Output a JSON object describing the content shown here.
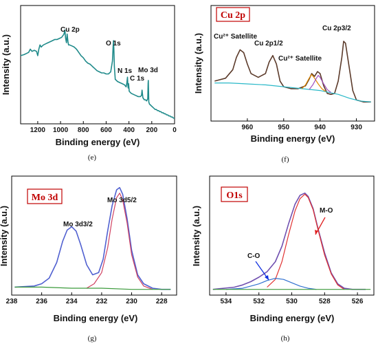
{
  "chart_data": [
    {
      "id": "e",
      "type": "line",
      "caption": "(e)",
      "xlabel": "Binding energy (eV)",
      "ylabel": "Intensity (a.u.)",
      "xlim": [
        1350,
        0
      ],
      "x_ticks": [
        1200,
        1000,
        800,
        600,
        400,
        200,
        0
      ],
      "x_tick_labels": [
        "1200",
        "1000",
        "800",
        "600",
        "400",
        "200",
        "0"
      ],
      "line_color": "#1f8a8a",
      "series": [
        {
          "x": [
            1350,
            1320,
            1300,
            1280,
            1265,
            1250,
            1230,
            1210,
            1200,
            1190,
            1180,
            1170,
            1160,
            1150,
            1130,
            1110,
            1090,
            1070,
            1050,
            1030,
            1010,
            990,
            970,
            962,
            955,
            948,
            942,
            935,
            930,
            920,
            900,
            880,
            860,
            840,
            820,
            800,
            780,
            760,
            740,
            720,
            700,
            680,
            660,
            640,
            620,
            600,
            580,
            560,
            545,
            538,
            535,
            532,
            528,
            520,
            510,
            500,
            480,
            460,
            440,
            425,
            418,
            413,
            410,
            407,
            403,
            398,
            390,
            380,
            360,
            340,
            320,
            300,
            290,
            285,
            282,
            278,
            272,
            265,
            255,
            245,
            235,
            232,
            230,
            228,
            226,
            220,
            210,
            200,
            190,
            180,
            170,
            160,
            150,
            140,
            130,
            120,
            110,
            100,
            90,
            80,
            70,
            60,
            50,
            40,
            30,
            20,
            10,
            0
          ],
          "y": [
            0.6,
            0.61,
            0.62,
            0.63,
            0.66,
            0.64,
            0.65,
            0.64,
            0.6,
            0.66,
            0.7,
            0.68,
            0.69,
            0.7,
            0.71,
            0.72,
            0.73,
            0.74,
            0.75,
            0.75,
            0.76,
            0.77,
            0.8,
            0.84,
            0.76,
            0.72,
            0.8,
            0.73,
            0.7,
            0.7,
            0.69,
            0.68,
            0.66,
            0.63,
            0.6,
            0.58,
            0.55,
            0.53,
            0.52,
            0.5,
            0.48,
            0.46,
            0.45,
            0.44,
            0.44,
            0.43,
            0.43,
            0.45,
            0.55,
            0.7,
            0.74,
            0.66,
            0.5,
            0.38,
            0.37,
            0.36,
            0.35,
            0.34,
            0.33,
            0.31,
            0.35,
            0.4,
            0.33,
            0.3,
            0.34,
            0.27,
            0.26,
            0.25,
            0.24,
            0.23,
            0.22,
            0.22,
            0.23,
            0.28,
            0.25,
            0.21,
            0.2,
            0.19,
            0.19,
            0.18,
            0.2,
            0.34,
            0.37,
            0.26,
            0.17,
            0.15,
            0.14,
            0.13,
            0.12,
            0.11,
            0.1,
            0.1,
            0.09,
            0.09,
            0.08,
            0.08,
            0.07,
            0.07,
            0.06,
            0.06,
            0.05,
            0.05,
            0.04,
            0.04,
            0.03,
            0.03,
            0.02,
            0.02
          ]
        }
      ],
      "annotations": [
        "Cu 2p",
        "O 1s",
        "N 1s",
        "C 1s",
        "Mo 3d"
      ]
    },
    {
      "id": "f",
      "type": "line",
      "caption": "(f)",
      "badge": "Cu 2p",
      "xlabel": "Binding energy (eV)",
      "ylabel": "Intensity (a.u.)",
      "xlim": [
        970,
        925
      ],
      "x_ticks": [
        960,
        950,
        940,
        930
      ],
      "x_tick_labels": [
        "960",
        "950",
        "940",
        "930"
      ],
      "series": [
        {
          "color": "#5b3a2a",
          "x": [
            969,
            966,
            964,
            963,
            962,
            961,
            960,
            959,
            957,
            955,
            954,
            953,
            952,
            951,
            950,
            948,
            946,
            944,
            943,
            942.3,
            941.5,
            940.7,
            940,
            939,
            938,
            937,
            936,
            935,
            934,
            933.5,
            933,
            932,
            931,
            930,
            928,
            926
          ],
          "y": [
            0.3,
            0.33,
            0.42,
            0.55,
            0.63,
            0.6,
            0.48,
            0.38,
            0.34,
            0.38,
            0.5,
            0.57,
            0.48,
            0.3,
            0.24,
            0.22,
            0.22,
            0.25,
            0.32,
            0.38,
            0.35,
            0.4,
            0.38,
            0.25,
            0.17,
            0.16,
            0.17,
            0.3,
            0.55,
            0.72,
            0.7,
            0.45,
            0.2,
            0.1,
            0.08,
            0.08
          ]
        },
        {
          "color": "#28b8c8",
          "x": [
            969,
            965,
            960,
            955,
            950,
            945,
            940,
            935,
            932,
            929,
            926
          ],
          "y": [
            0.28,
            0.28,
            0.27,
            0.26,
            0.24,
            0.22,
            0.2,
            0.16,
            0.12,
            0.09,
            0.08
          ]
        },
        {
          "color": "#e08a00",
          "x": [
            945,
            944,
            943,
            942.3,
            941.5,
            940.5,
            939.5,
            938.5
          ],
          "y": [
            0.22,
            0.26,
            0.33,
            0.37,
            0.33,
            0.27,
            0.22,
            0.19
          ]
        },
        {
          "color": "#a050c0",
          "x": [
            943,
            942,
            941,
            940.5,
            940,
            939,
            938,
            937
          ],
          "y": [
            0.21,
            0.26,
            0.33,
            0.36,
            0.34,
            0.27,
            0.21,
            0.18
          ]
        }
      ],
      "annotations": [
        "Cu²⁺ Satellite",
        "Cu 2p1/2",
        "Cu²⁺ Satellite",
        "Cu 2p3/2"
      ]
    },
    {
      "id": "g",
      "type": "line",
      "caption": "(g)",
      "badge": "Mo 3d",
      "xlabel": "Binding energy (eV)",
      "ylabel": "Intensity (a.u.)",
      "xlim": [
        238,
        227
      ],
      "x_ticks": [
        238,
        236,
        234,
        232,
        230,
        228
      ],
      "x_tick_labels": [
        "238",
        "236",
        "234",
        "232",
        "230",
        "228"
      ],
      "series": [
        {
          "color": "#5060d0",
          "x": [
            237.8,
            236.5,
            236,
            235.5,
            235,
            234.6,
            234.3,
            234,
            233.7,
            233.4,
            233,
            232.6,
            232.2,
            231.9,
            231.6,
            231.3,
            231,
            230.8,
            230.6,
            230.3,
            230,
            229.6,
            229.2,
            228.6,
            228,
            227.4
          ],
          "y": [
            0.05,
            0.06,
            0.08,
            0.13,
            0.27,
            0.46,
            0.56,
            0.59,
            0.55,
            0.43,
            0.25,
            0.16,
            0.18,
            0.3,
            0.55,
            0.78,
            0.92,
            0.94,
            0.88,
            0.66,
            0.38,
            0.16,
            0.08,
            0.04,
            0.03,
            0.03
          ]
        },
        {
          "color": "#d04060",
          "x": [
            233,
            232.5,
            232,
            231.6,
            231.3,
            231,
            230.8,
            230.6,
            230.3,
            230,
            229.6,
            229.2,
            228.6
          ],
          "y": [
            0.04,
            0.08,
            0.18,
            0.4,
            0.66,
            0.85,
            0.89,
            0.83,
            0.62,
            0.34,
            0.14,
            0.06,
            0.03
          ]
        },
        {
          "color": "#3a9a3a",
          "x": [
            237.8,
            236,
            234,
            232,
            230,
            228,
            227.4
          ],
          "y": [
            0.05,
            0.05,
            0.04,
            0.04,
            0.03,
            0.03,
            0.03
          ]
        }
      ],
      "annotations": [
        "Mo 3d3/2",
        "Mo 3d5/2"
      ]
    },
    {
      "id": "h",
      "type": "line",
      "caption": "(h)",
      "badge": "O1s",
      "xlabel": "Binding energy (eV)",
      "ylabel": "Intensity (a.u.)",
      "xlim": [
        535,
        525
      ],
      "x_ticks": [
        534,
        532,
        530,
        528,
        526
      ],
      "x_tick_labels": [
        "534",
        "532",
        "530",
        "528",
        "526"
      ],
      "series": [
        {
          "color": "#7050b0",
          "x": [
            534.8,
            533.5,
            533,
            532.5,
            532,
            531.5,
            531,
            530.6,
            530.2,
            529.8,
            529.5,
            529.2,
            529,
            528.7,
            528.4,
            528,
            527.6,
            527.2,
            526.8,
            526.3,
            525.5
          ],
          "y": [
            0.03,
            0.05,
            0.07,
            0.1,
            0.14,
            0.19,
            0.28,
            0.42,
            0.62,
            0.8,
            0.88,
            0.9,
            0.87,
            0.76,
            0.58,
            0.36,
            0.18,
            0.08,
            0.04,
            0.03,
            0.03
          ]
        },
        {
          "color": "#e03030",
          "x": [
            531.5,
            531,
            530.6,
            530.2,
            529.8,
            529.5,
            529.2,
            529,
            528.7,
            528.4,
            528,
            527.6,
            527.2,
            526.8
          ],
          "y": [
            0.05,
            0.12,
            0.28,
            0.52,
            0.74,
            0.85,
            0.89,
            0.86,
            0.75,
            0.57,
            0.34,
            0.17,
            0.07,
            0.03
          ]
        },
        {
          "color": "#3070d0",
          "x": [
            534,
            533,
            532.5,
            532,
            531.5,
            531,
            530.5,
            530,
            529.5,
            529,
            528.5
          ],
          "y": [
            0.03,
            0.04,
            0.06,
            0.08,
            0.11,
            0.13,
            0.12,
            0.09,
            0.06,
            0.04,
            0.03
          ]
        },
        {
          "color": "#3a9a3a",
          "x": [
            534.8,
            532,
            529,
            526,
            525.2
          ],
          "y": [
            0.03,
            0.03,
            0.03,
            0.03,
            0.03
          ]
        }
      ],
      "annotations": [
        "C-O",
        "M-O"
      ]
    }
  ]
}
